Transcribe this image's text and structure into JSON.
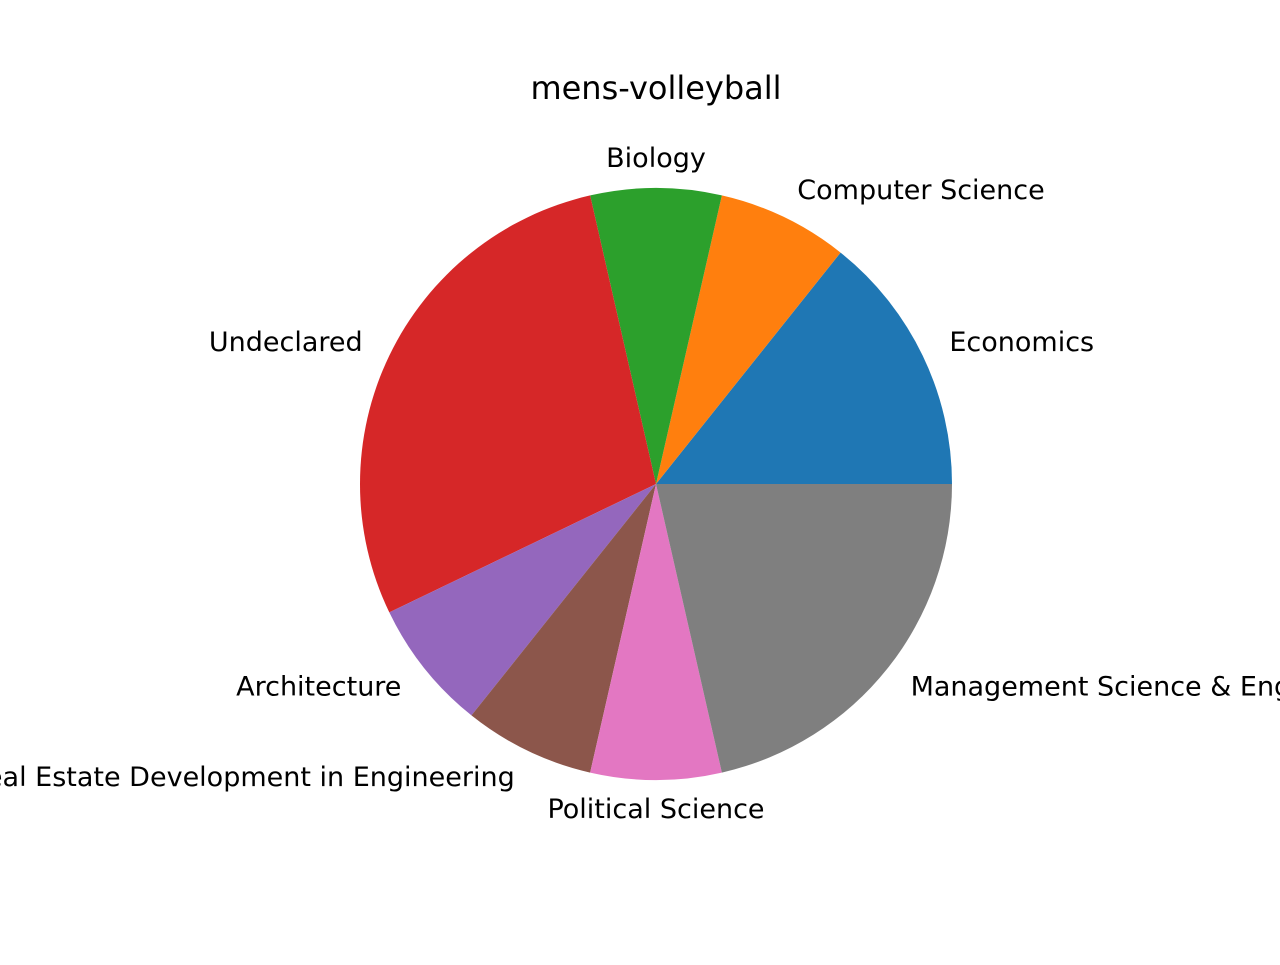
{
  "chart_data": {
    "type": "pie",
    "title": "mens-volleyball",
    "labels": [
      "Economics",
      "Computer Science",
      "Biology",
      "Undeclared",
      "Architecture",
      "Real Estate Development in Engineering",
      "Political Science",
      "Management Science & Engineering"
    ],
    "values": [
      2,
      1,
      1,
      4,
      1,
      1,
      1,
      3
    ],
    "colors": [
      "#1f77b4",
      "#ff7f0e",
      "#2ca02c",
      "#d62728",
      "#9467bd",
      "#8c564b",
      "#e377c2",
      "#7f7f7f"
    ],
    "start_angle": 0,
    "direction": "counterclockwise"
  }
}
